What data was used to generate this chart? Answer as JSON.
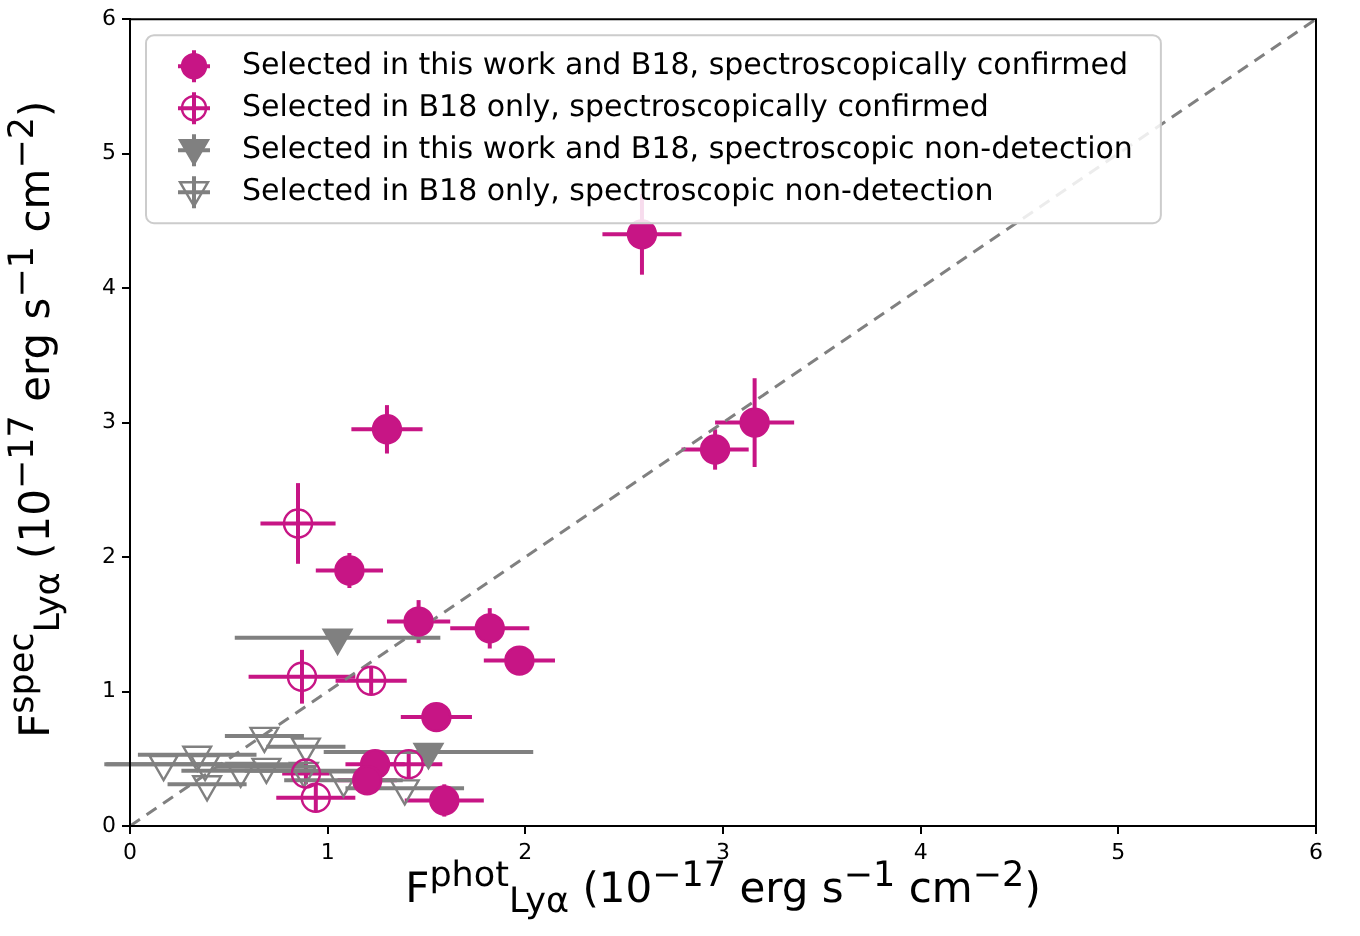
{
  "chart_data": {
    "type": "scatter",
    "xlabel": "F$^{phot}$$_{Lyα}$ (10$^{−17}$ erg s$^{−1}$ cm$^{−2}$)",
    "ylabel": "F$^{spec}$$_{Lyα}$ (10$^{−17}$ erg s$^{−1}$ cm$^{−2}$)",
    "xlim": [
      0,
      6
    ],
    "ylim": [
      0,
      6
    ],
    "xticks": [
      0,
      1,
      2,
      3,
      4,
      5,
      6
    ],
    "yticks": [
      0,
      1,
      2,
      3,
      4,
      5,
      6
    ],
    "grid": false,
    "legend": "top left",
    "series": [
      {
        "name": "Selected in this work and B18, spectroscopically confirmed",
        "color": "#c71585",
        "marker": "circle",
        "x": [
          2.59,
          3.16,
          2.96,
          1.3,
          1.11,
          1.46,
          1.82,
          1.97,
          1.55,
          1.24,
          1.2,
          1.59
        ],
        "values": [
          4.4,
          3.0,
          2.8,
          2.95,
          1.9,
          1.52,
          1.47,
          1.23,
          0.81,
          0.46,
          0.34,
          0.19
        ],
        "xerrors": [
          0.2,
          0.2,
          0.17,
          0.18,
          0.17,
          0.16,
          0.2,
          0.18,
          0.18,
          0.15,
          0.15,
          0.2
        ],
        "errors": [
          0.3,
          0.33,
          0.15,
          0.18,
          0.13,
          0.16,
          0.15,
          0.07,
          0.05,
          0.08,
          0.06,
          0.12
        ]
      },
      {
        "name": "Selected in B18 only, spectroscopically confirmed",
        "color": "#c71585",
        "marker": "circle",
        "x": [
          0.85,
          0.87,
          1.22,
          0.89,
          0.94,
          1.41
        ],
        "values": [
          2.25,
          1.11,
          1.08,
          0.39,
          0.21,
          0.46
        ],
        "xerrors": [
          0.19,
          0.27,
          0.18,
          0.12,
          0.2,
          0.17
        ],
        "errors": [
          0.3,
          0.2,
          0.1,
          0.08,
          0.1,
          0.1
        ]
      },
      {
        "name": "Selected in this work and B18, spectroscopic non-detection",
        "color": "#808080",
        "marker": "triangle",
        "x": [
          1.05,
          1.51
        ],
        "values": [
          1.4,
          0.55
        ],
        "xerrors": [
          0.52,
          0.53
        ]
      },
      {
        "name": "Selected in B18 only, spectroscopic non-detection",
        "color": "#808080",
        "marker": "triangle",
        "x": [
          0.17,
          0.34,
          0.39,
          0.38,
          0.56,
          0.68,
          0.69,
          0.89,
          0.88,
          1.08,
          1.39
        ],
        "values": [
          0.46,
          0.53,
          0.31,
          0.46,
          0.41,
          0.67,
          0.44,
          0.59,
          0.41,
          0.34,
          0.28
        ],
        "xerrors": [
          0.3,
          0.3,
          0.2,
          0.5,
          0.3,
          0.2,
          0.25,
          0.2,
          0.3,
          0.3,
          0.3
        ]
      },
      {
        "type": "line",
        "color": "#808080",
        "line_style": "dashed",
        "x": [
          0,
          6
        ],
        "values": [
          0,
          6
        ]
      }
    ]
  }
}
